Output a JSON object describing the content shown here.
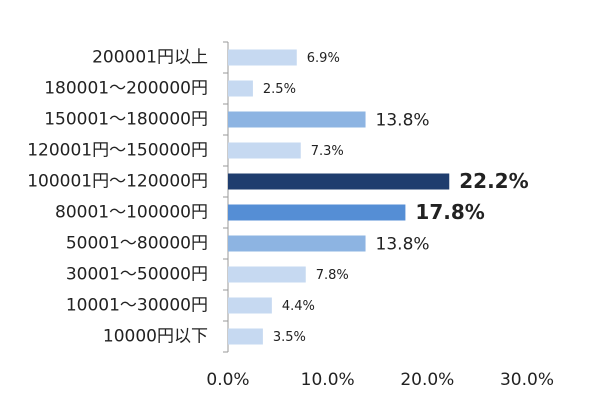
{
  "chart_data": {
    "type": "hbar",
    "categories": [
      "200001円以上",
      "180001～200000円",
      "150001～180000円",
      "120001円～150000円",
      "100001円～120000円",
      "80001～100000円",
      "50001～80000円",
      "30001～50000円",
      "10001～30000円",
      "10000円以下"
    ],
    "values": [
      6.9,
      2.5,
      13.8,
      7.3,
      22.2,
      17.8,
      13.8,
      7.8,
      4.4,
      3.5
    ],
    "value_labels": [
      "6.9%",
      "2.5%",
      "13.8%",
      "7.3%",
      "22.2%",
      "17.8%",
      "13.8%",
      "7.8%",
      "4.4%",
      "3.5%"
    ],
    "colors": [
      "#c6d9f1",
      "#c6d9f1",
      "#8db4e2",
      "#c6d9f1",
      "#1f3d6e",
      "#558ed5",
      "#8db4e2",
      "#c6d9f1",
      "#c6d9f1",
      "#c6d9f1"
    ],
    "label_colors": [
      "#222222",
      "#222222",
      "#222222",
      "#222222",
      "#ff0000",
      "#ff0000",
      "#222222",
      "#222222",
      "#222222",
      "#222222"
    ],
    "xlim": [
      0,
      30
    ],
    "xticks": [
      {
        "value": 0,
        "label": "0.0%"
      },
      {
        "value": 10,
        "label": "10.0%"
      },
      {
        "value": 20,
        "label": "20.0%"
      },
      {
        "value": 30,
        "label": "30.0%"
      }
    ],
    "grid": false
  }
}
